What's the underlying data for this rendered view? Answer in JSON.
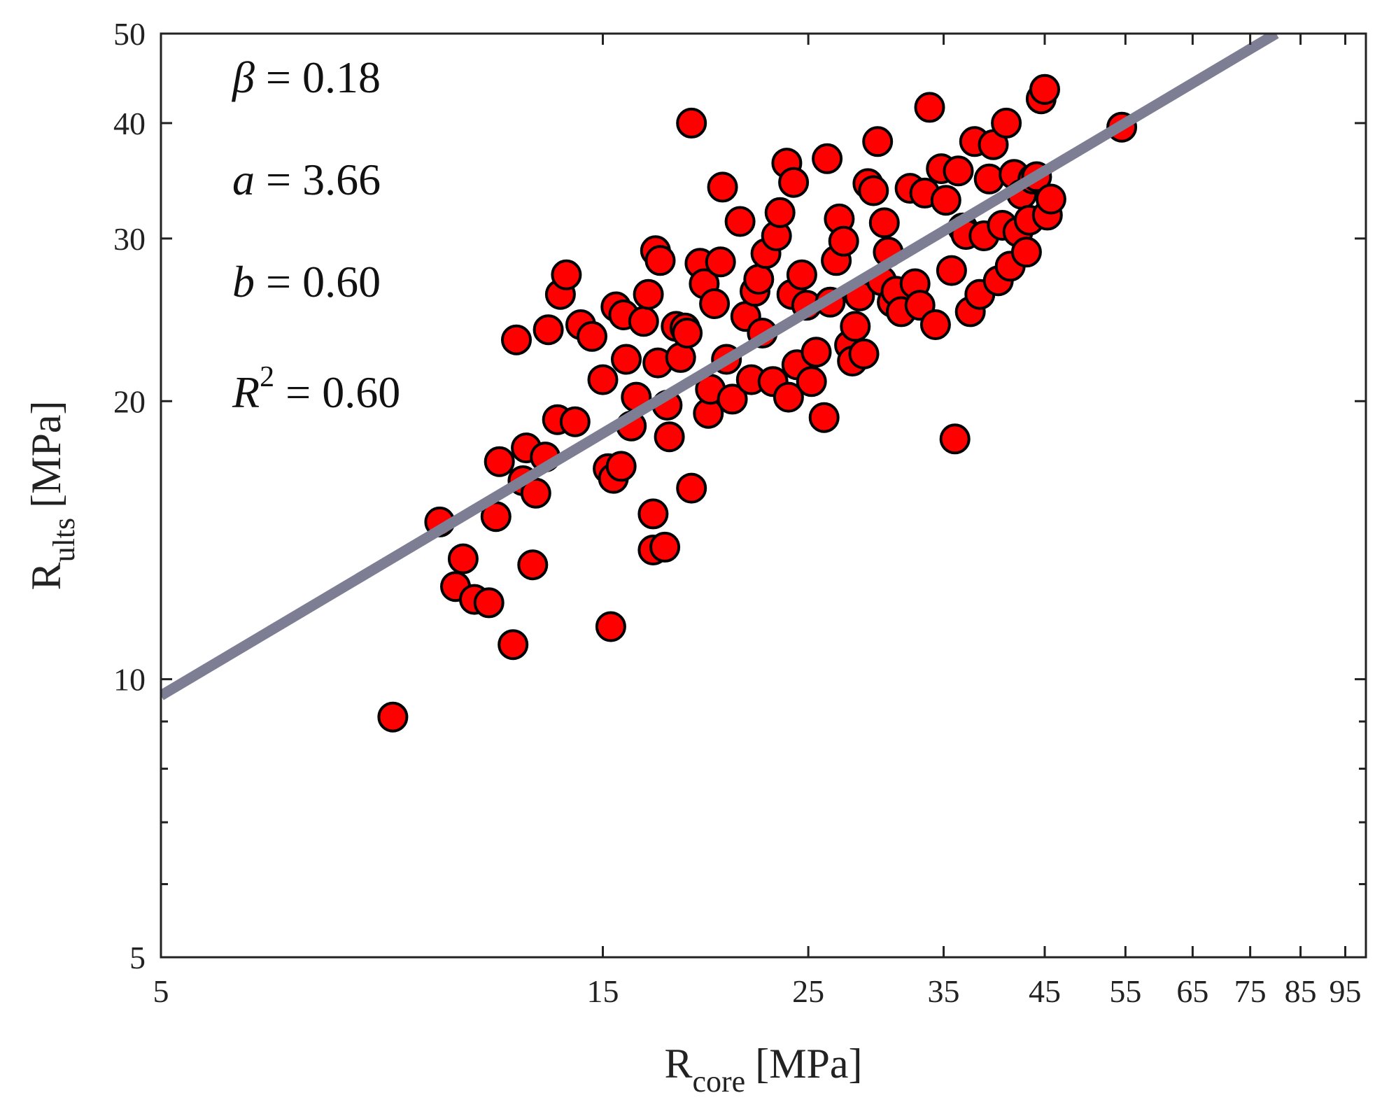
{
  "chart_data": {
    "type": "scatter",
    "title": "",
    "xlabel": {
      "main": "R",
      "sub": "core",
      "unit": "[MPa]"
    },
    "ylabel": {
      "main": "R",
      "sub": "ults",
      "unit": "[MPa]"
    },
    "x_scale": "log",
    "y_scale": "log",
    "xlim": [
      5,
      100
    ],
    "ylim": [
      5,
      50
    ],
    "x_ticks": [
      5,
      15,
      25,
      35,
      45,
      55,
      65,
      75,
      85,
      95
    ],
    "x_tick_labels": [
      "5",
      "15",
      "25",
      "35",
      "45",
      "55",
      "65",
      "75",
      "85",
      "95"
    ],
    "y_ticks": [
      5,
      10,
      20,
      30,
      40,
      50
    ],
    "y_tick_labels": [
      "5",
      "10",
      "20",
      "30",
      "40",
      "50"
    ],
    "y_minor_ticks": [
      6,
      7,
      8,
      9
    ],
    "grid": false,
    "marker_color": "#ff0000",
    "marker_edge_color": "#000000",
    "fit_line_color": "#7d7d94",
    "fit_line": {
      "name": "fit",
      "x": [
        5,
        80
      ],
      "y": [
        9.6,
        50
      ]
    },
    "annotations": {
      "beta": {
        "var": "β",
        "text": " = 0.18"
      },
      "a": {
        "var": "a",
        "text": " = 3.66"
      },
      "b": {
        "var": "b",
        "text": " = 0.60"
      },
      "r2": {
        "var": "R",
        "sup": "2",
        "text": " = 0.60"
      }
    },
    "series": [
      {
        "name": "data",
        "points": [
          [
            8.9,
            9.1
          ],
          [
            10.0,
            14.8
          ],
          [
            10.4,
            12.6
          ],
          [
            10.6,
            13.5
          ],
          [
            10.9,
            12.2
          ],
          [
            11.3,
            12.1
          ],
          [
            11.5,
            15.0
          ],
          [
            11.6,
            17.2
          ],
          [
            12.0,
            10.9
          ],
          [
            12.1,
            23.3
          ],
          [
            12.3,
            16.4
          ],
          [
            12.4,
            17.8
          ],
          [
            12.6,
            13.3
          ],
          [
            12.7,
            15.9
          ],
          [
            13.0,
            17.4
          ],
          [
            13.1,
            23.9
          ],
          [
            13.4,
            19.1
          ],
          [
            13.5,
            26.1
          ],
          [
            13.7,
            27.4
          ],
          [
            14.0,
            19.0
          ],
          [
            14.2,
            24.2
          ],
          [
            14.6,
            23.5
          ],
          [
            15.0,
            21.1
          ],
          [
            15.2,
            16.9
          ],
          [
            15.3,
            11.4
          ],
          [
            15.4,
            16.5
          ],
          [
            15.5,
            25.3
          ],
          [
            15.7,
            17.0
          ],
          [
            15.8,
            24.8
          ],
          [
            15.9,
            22.2
          ],
          [
            16.1,
            18.8
          ],
          [
            16.3,
            20.2
          ],
          [
            16.6,
            24.4
          ],
          [
            16.8,
            26.1
          ],
          [
            17.0,
            15.1
          ],
          [
            17.0,
            13.8
          ],
          [
            17.1,
            29.1
          ],
          [
            17.2,
            22.0
          ],
          [
            17.3,
            28.4
          ],
          [
            17.5,
            13.9
          ],
          [
            17.6,
            19.8
          ],
          [
            17.7,
            18.3
          ],
          [
            18.0,
            24.1
          ],
          [
            18.2,
            22.3
          ],
          [
            18.4,
            24.0
          ],
          [
            18.5,
            23.7
          ],
          [
            18.7,
            40.0
          ],
          [
            18.7,
            16.1
          ],
          [
            19.1,
            28.2
          ],
          [
            19.3,
            26.8
          ],
          [
            19.5,
            19.4
          ],
          [
            19.6,
            20.6
          ],
          [
            19.8,
            25.5
          ],
          [
            20.1,
            28.3
          ],
          [
            20.2,
            34.1
          ],
          [
            20.4,
            22.2
          ],
          [
            20.7,
            20.1
          ],
          [
            21.1,
            31.3
          ],
          [
            21.4,
            24.7
          ],
          [
            21.7,
            21.1
          ],
          [
            21.9,
            26.3
          ],
          [
            22.1,
            27.1
          ],
          [
            22.3,
            23.7
          ],
          [
            22.5,
            28.9
          ],
          [
            22.9,
            21.0
          ],
          [
            23.1,
            30.2
          ],
          [
            23.3,
            32.0
          ],
          [
            23.7,
            36.2
          ],
          [
            23.8,
            20.2
          ],
          [
            24.0,
            26.1
          ],
          [
            24.1,
            34.5
          ],
          [
            24.3,
            21.9
          ],
          [
            24.6,
            27.4
          ],
          [
            24.9,
            25.4
          ],
          [
            25.2,
            21.0
          ],
          [
            25.5,
            22.6
          ],
          [
            26.0,
            19.2
          ],
          [
            26.2,
            36.6
          ],
          [
            26.4,
            25.6
          ],
          [
            26.8,
            28.4
          ],
          [
            27.0,
            31.5
          ],
          [
            27.3,
            29.8
          ],
          [
            27.7,
            23.0
          ],
          [
            27.9,
            22.1
          ],
          [
            28.1,
            24.1
          ],
          [
            28.4,
            26.0
          ],
          [
            28.7,
            22.5
          ],
          [
            29.0,
            34.4
          ],
          [
            29.4,
            33.8
          ],
          [
            29.7,
            38.2
          ],
          [
            30.0,
            27.0
          ],
          [
            30.2,
            31.2
          ],
          [
            30.5,
            29.0
          ],
          [
            30.8,
            25.6
          ],
          [
            31.1,
            26.3
          ],
          [
            31.5,
            25.0
          ],
          [
            32.2,
            34.0
          ],
          [
            32.6,
            26.8
          ],
          [
            33.0,
            25.4
          ],
          [
            33.4,
            33.6
          ],
          [
            33.8,
            41.6
          ],
          [
            34.3,
            24.2
          ],
          [
            34.8,
            35.7
          ],
          [
            35.2,
            33.0
          ],
          [
            35.7,
            27.7
          ],
          [
            36.0,
            18.2
          ],
          [
            36.3,
            35.5
          ],
          [
            36.7,
            30.8
          ],
          [
            37.0,
            30.3
          ],
          [
            37.4,
            25.0
          ],
          [
            37.8,
            38.2
          ],
          [
            38.3,
            26.1
          ],
          [
            38.7,
            30.2
          ],
          [
            39.2,
            34.8
          ],
          [
            39.6,
            37.9
          ],
          [
            40.1,
            27.0
          ],
          [
            40.5,
            31.0
          ],
          [
            40.9,
            40.0
          ],
          [
            41.3,
            28.0
          ],
          [
            41.7,
            35.2
          ],
          [
            42.1,
            30.5
          ],
          [
            42.5,
            33.5
          ],
          [
            43.0,
            29.0
          ],
          [
            43.3,
            31.4
          ],
          [
            43.7,
            34.8
          ],
          [
            44.1,
            35.0
          ],
          [
            44.6,
            42.5
          ],
          [
            45.0,
            43.5
          ],
          [
            45.3,
            31.8
          ],
          [
            45.7,
            33.1
          ],
          [
            54.5,
            39.6
          ]
        ]
      }
    ]
  }
}
